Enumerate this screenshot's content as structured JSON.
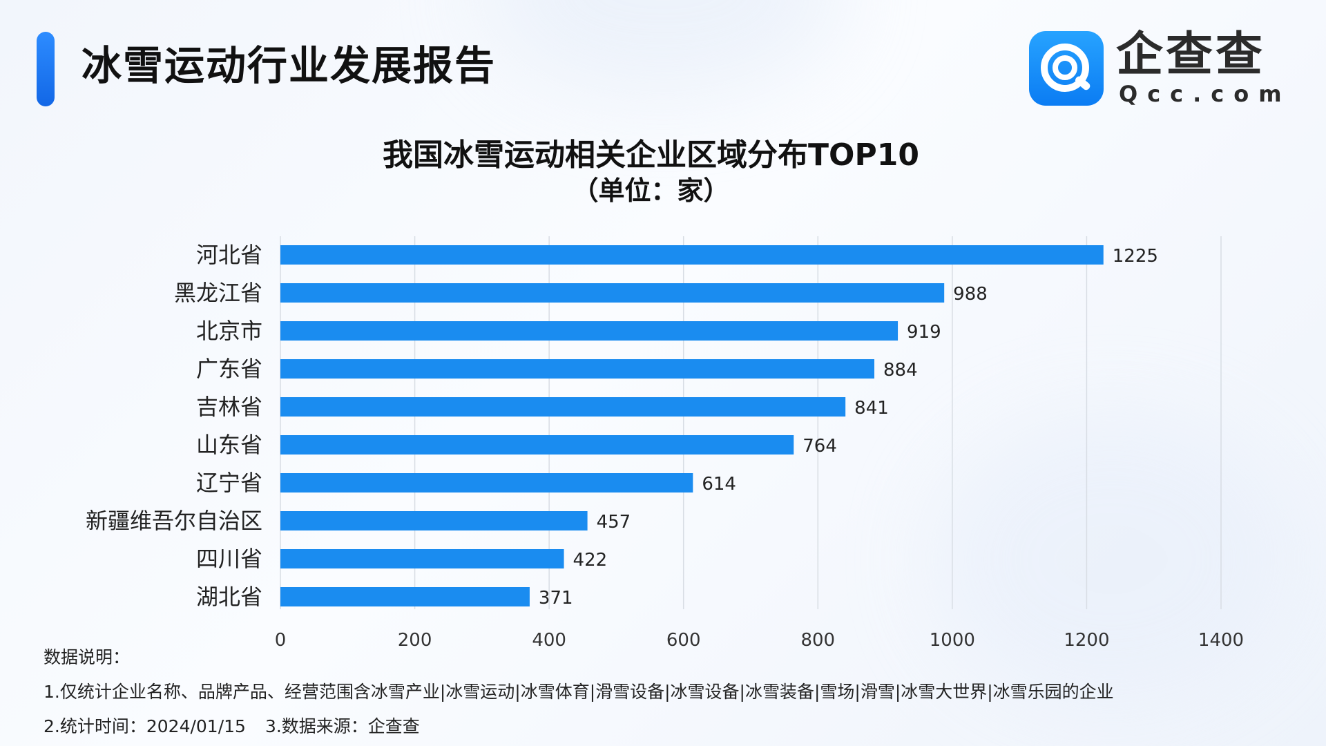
{
  "header": {
    "report_title": "冰雪运动行业发展报告",
    "logo_name": "企查查",
    "logo_domain": "Qcc.com",
    "logo_icon": "qcc-magnifier-icon"
  },
  "chart_data": {
    "type": "bar",
    "orientation": "horizontal",
    "title": "我国冰雪运动相关企业区域分布TOP10",
    "subtitle": "（单位：家）",
    "categories": [
      "河北省",
      "黑龙江省",
      "北京市",
      "广东省",
      "吉林省",
      "山东省",
      "辽宁省",
      "新疆维吾尔自治区",
      "四川省",
      "湖北省"
    ],
    "values": [
      1225,
      988,
      919,
      884,
      841,
      764,
      614,
      457,
      422,
      371
    ],
    "xlim": [
      0,
      1400
    ],
    "ticks": [
      0,
      200,
      400,
      600,
      800,
      1000,
      1200,
      1400
    ],
    "grid": true,
    "bar_color": "#1a8cf0",
    "grid_color": "#d8dde4"
  },
  "notes": {
    "heading": "数据说明：",
    "line1": "1.仅统计企业名称、品牌产品、经营范围含冰雪产业|冰雪运动|冰雪体育|滑雪设备|冰雪设备|冰雪装备|雪场|滑雪|冰雪大世界|冰雪乐园的企业",
    "line2a": "2.统计时间：2024/01/15",
    "line2b": "3.数据来源：企查查"
  }
}
